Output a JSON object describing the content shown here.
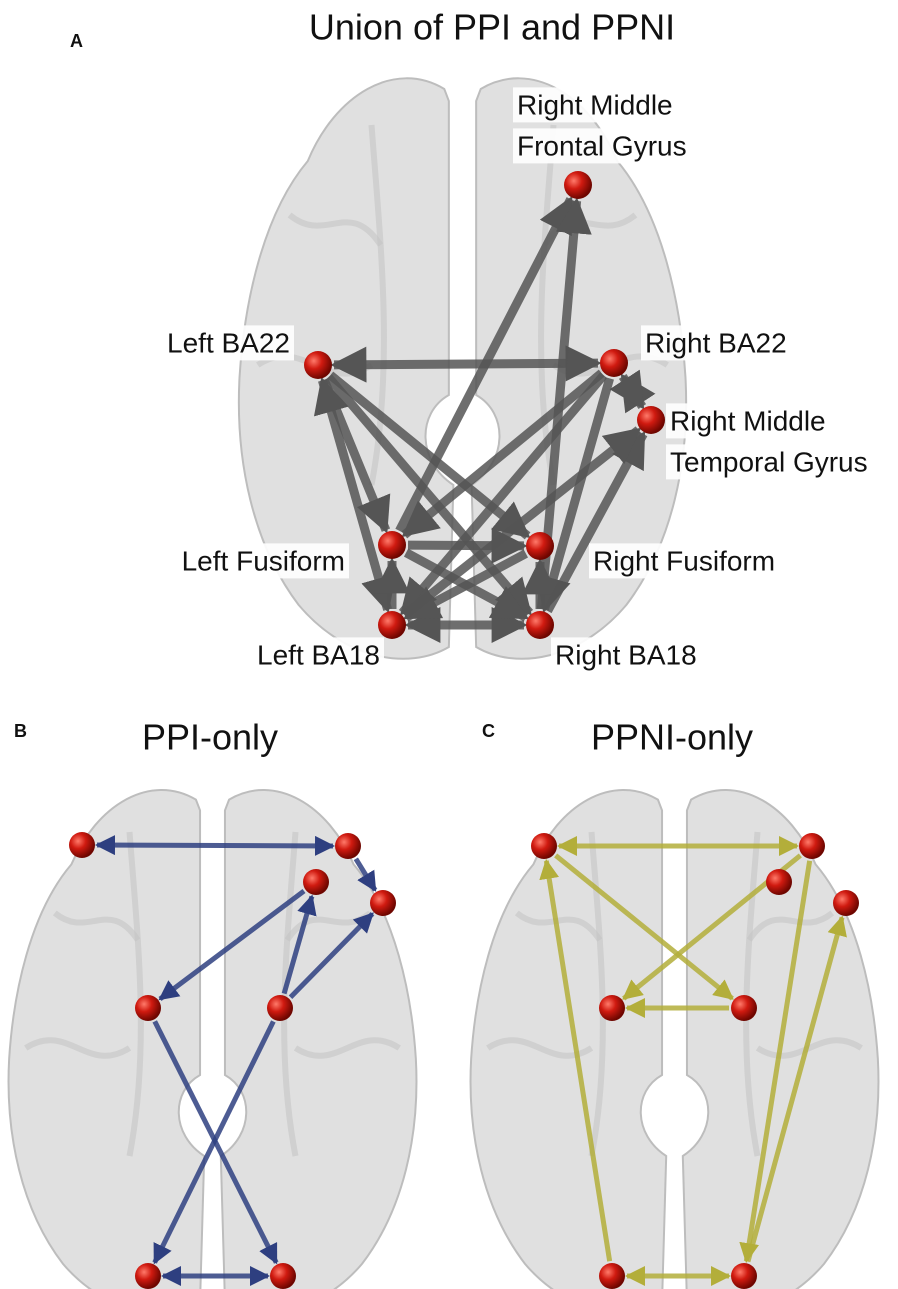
{
  "panels": [
    {
      "label": "A",
      "title": "Union of PPI and PPNI",
      "nodes": [
        {
          "lines": [
            "Right Middle",
            "Frontal Gyrus"
          ]
        },
        {
          "lines": [
            "Left BA22"
          ]
        },
        {
          "lines": [
            "Right BA22"
          ]
        },
        {
          "lines": [
            "Right Middle",
            "Temporal Gyrus"
          ]
        },
        {
          "lines": [
            "Left Fusiform"
          ]
        },
        {
          "lines": [
            "Right Fusiform"
          ]
        },
        {
          "lines": [
            "Left BA18"
          ]
        },
        {
          "lines": [
            "Right BA18"
          ]
        }
      ]
    },
    {
      "label": "B",
      "title": "PPI-only"
    },
    {
      "label": "C",
      "title": "PPNI-only"
    }
  ]
}
